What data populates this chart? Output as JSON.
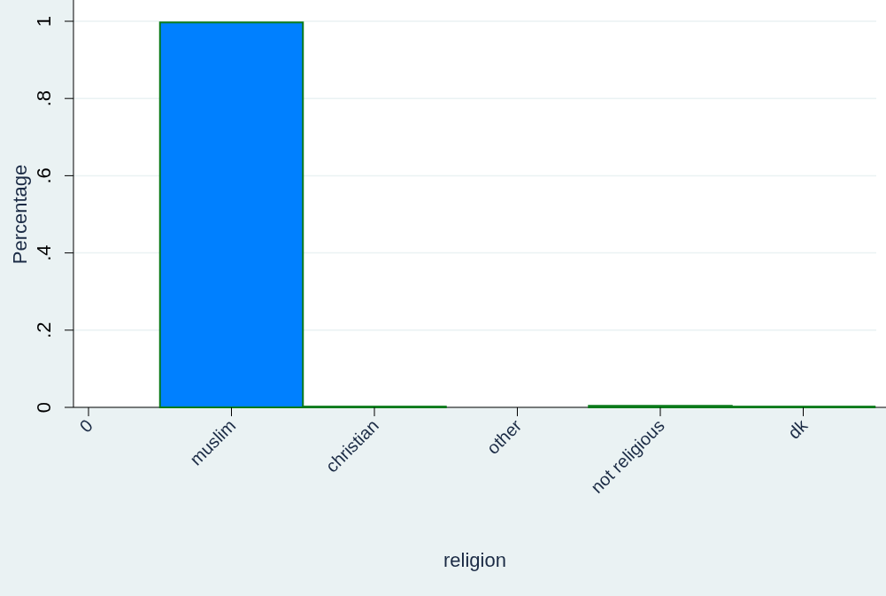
{
  "chart_data": {
    "type": "bar",
    "xlabel": "religion",
    "ylabel": "Percentage",
    "categories": [
      "0",
      "muslim",
      "christian",
      "other",
      "not religious",
      "dk"
    ],
    "values": [
      0,
      0.997,
      0.002,
      0,
      0.004,
      0.002
    ],
    "color": "#0080ff",
    "ylim": [
      0,
      1
    ],
    "yticks": [
      0,
      {
        "value": 0.2,
        "label": ".2"
      },
      {
        "value": 0.4,
        "label": ".4"
      },
      {
        "value": 0.6,
        "label": ".6"
      },
      {
        "value": 0.8,
        "label": ".8"
      },
      1
    ],
    "grid": "y"
  }
}
